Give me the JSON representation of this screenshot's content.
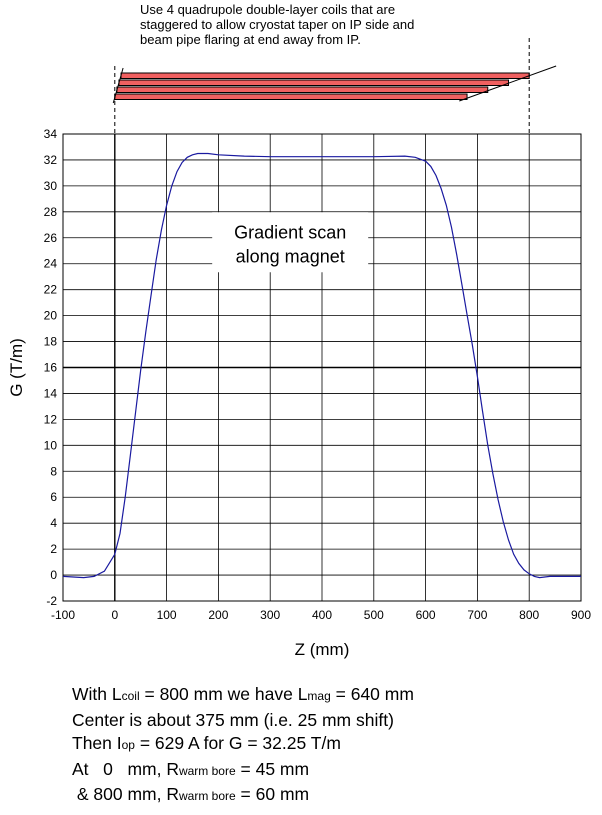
{
  "top_note": "Use 4 quadrupole double-layer coils that are\nstaggered to allow cryostat taper on IP side and\nbeam pipe flaring at end away from IP.",
  "coil_diagram": {
    "fill": "#f06060",
    "coils": [
      {
        "start_mm": 12,
        "end_mm": 800
      },
      {
        "start_mm": 8,
        "end_mm": 760
      },
      {
        "start_mm": 4,
        "end_mm": 720
      },
      {
        "start_mm": 0,
        "end_mm": 680
      }
    ]
  },
  "chart_data": {
    "type": "line",
    "annotation": "Gradient scan\nalong magnet",
    "xlabel": "Z (mm)",
    "ylabel": "G (T/m)",
    "xlim": [
      -100,
      900
    ],
    "ylim": [
      -2,
      34
    ],
    "xticks": [
      -100,
      0,
      100,
      200,
      300,
      400,
      500,
      600,
      700,
      800,
      900
    ],
    "yticks": [
      -2,
      0,
      2,
      4,
      6,
      8,
      10,
      12,
      14,
      16,
      18,
      20,
      22,
      24,
      26,
      28,
      30,
      32,
      34
    ],
    "highlight_y": 16,
    "grid": true,
    "line_color": "#1a1aa0",
    "series": [
      {
        "x": [
          -100,
          -60,
          -40,
          -20,
          0,
          10,
          20,
          30,
          40,
          50,
          60,
          70,
          80,
          90,
          100,
          110,
          120,
          130,
          140,
          150,
          160,
          180,
          200,
          250,
          300,
          400,
          500,
          560,
          580,
          600,
          610,
          620,
          630,
          640,
          650,
          660,
          670,
          680,
          690,
          700,
          710,
          720,
          730,
          740,
          750,
          760,
          770,
          780,
          790,
          800,
          810,
          820,
          840,
          860,
          900
        ],
        "y": [
          -0.1,
          -0.2,
          -0.1,
          0.3,
          1.6,
          3.2,
          6.0,
          9.2,
          12.5,
          15.8,
          18.8,
          21.6,
          24.3,
          26.6,
          28.5,
          30.0,
          31.1,
          31.8,
          32.2,
          32.4,
          32.5,
          32.5,
          32.4,
          32.3,
          32.25,
          32.25,
          32.25,
          32.3,
          32.2,
          31.9,
          31.5,
          30.8,
          29.8,
          28.5,
          26.8,
          24.7,
          22.4,
          20.1,
          17.8,
          15.3,
          12.6,
          10.0,
          7.8,
          5.8,
          4.1,
          2.7,
          1.6,
          0.9,
          0.4,
          0.1,
          -0.1,
          -0.2,
          -0.1,
          -0.1,
          -0.1
        ]
      }
    ]
  },
  "notes": [
    {
      "parts": [
        {
          "t": "With L"
        },
        {
          "t": "coil",
          "sub": true
        },
        {
          "t": " = 800 mm we have L"
        },
        {
          "t": "mag",
          "sub": true
        },
        {
          "t": " = 640 mm"
        }
      ]
    },
    {
      "parts": [
        {
          "t": "Center is about 375 mm (i.e. 25 mm shift)"
        }
      ]
    },
    {
      "parts": [
        {
          "t": "Then I"
        },
        {
          "t": "op",
          "sub": true
        },
        {
          "t": " = 629 A for G = 32.25 T/m"
        }
      ]
    },
    {
      "parts": [
        {
          "t": "At   0   mm, R"
        },
        {
          "t": "warm bore",
          "sub": true
        },
        {
          "t": " = 45 mm"
        }
      ]
    },
    {
      "parts": [
        {
          "t": " & 800 mm, R"
        },
        {
          "t": "warm bore",
          "sub": true
        },
        {
          "t": " = 60 mm"
        }
      ]
    }
  ]
}
